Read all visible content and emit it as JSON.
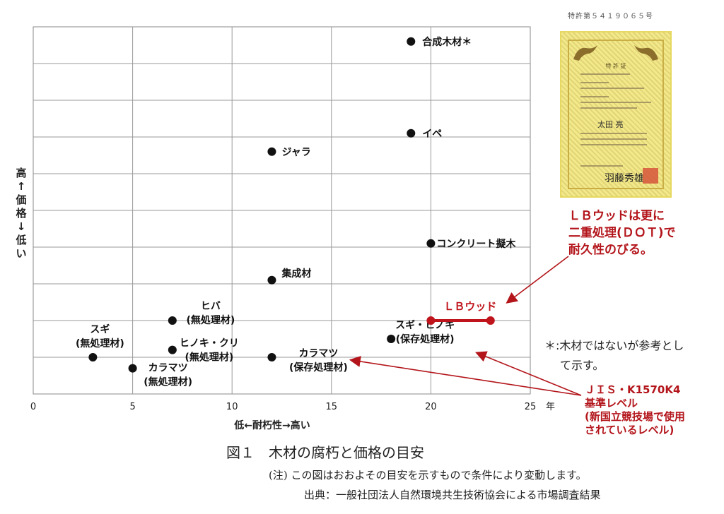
{
  "patent_number": "特許第５４１９０６５号",
  "certificate": {
    "title": "特 許 証",
    "name": "太田 亮",
    "signature": "羽藤秀雄"
  },
  "lb_note": [
    "ＬＢウッドは更に",
    "二重処理(ＤＯＴ)で",
    "耐久性のびる。"
  ],
  "jis_note": [
    "ＪＩＳ・K1570K4",
    "基準レベル",
    "(新国立競技場で使用",
    "されているレベル)"
  ],
  "asterisk_note": [
    "＊:木材ではないが参考とし",
    "て示す。"
  ],
  "caption": "図１　木材の腐朽と価格の目安",
  "footnote_1": "(注)  この図はおおよその目安を示すもので条件により変動します。",
  "footnote_2": "出典：一般社団法人自然環境共生技術協会による市場調査結果",
  "chart_data": {
    "type": "scatter",
    "xlabel": "低←耐朽性→高い",
    "x_unit": "年",
    "ylabel": "高↑価格↓低い",
    "xlim": [
      0,
      25
    ],
    "xticks": [
      0,
      5,
      10,
      15,
      20,
      25
    ],
    "grid": true,
    "points": [
      {
        "label": "合成木材＊",
        "x": 19,
        "y": 9.6
      },
      {
        "label": "イペ",
        "x": 19,
        "y": 7.1
      },
      {
        "label": "ジャラ",
        "x": 12,
        "y": 6.6
      },
      {
        "label": "コンクリート擬木",
        "x": 20,
        "y": 4.1
      },
      {
        "label": "集成材",
        "x": 12,
        "y": 3.1
      },
      {
        "label": "ヒバ\n(無処理材)",
        "x": 7,
        "y": 2.0
      },
      {
        "label": "スギ・ヒノキ\n(保存処理材)",
        "x": 18,
        "y": 1.5
      },
      {
        "label": "ヒノキ・クリ\n(無処理材)",
        "x": 7,
        "y": 1.2
      },
      {
        "label": "スギ\n(無処理材)",
        "x": 3,
        "y": 1.0
      },
      {
        "label": "カラマツ\n(保存処理材)",
        "x": 12,
        "y": 1.0
      },
      {
        "label": "カラマツ\n(無処理材)",
        "x": 5,
        "y": 0.7
      }
    ],
    "range_series": {
      "label": "ＬＢウッド",
      "x": [
        20,
        23
      ],
      "y": 2.0,
      "color": "#c0141c"
    }
  }
}
